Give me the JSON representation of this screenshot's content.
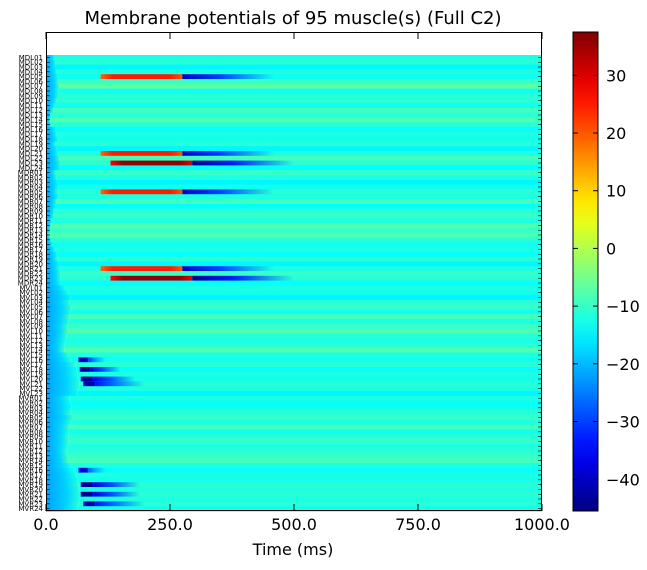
{
  "chart_data": {
    "type": "heatmap",
    "title": "Membrane potentials of 95 muscle(s) (Full C2)",
    "xlabel": "Time (ms)",
    "ylabel": "",
    "xlim": [
      0,
      1000
    ],
    "x_ticks": [
      "0.0",
      "250.0",
      "500.0",
      "750.0",
      "1000.0"
    ],
    "colorbar": {
      "colormap": "jet",
      "range": [
        -45.5,
        37.5
      ],
      "ticks": [
        "30",
        "20",
        "10",
        "0",
        "−10",
        "−20",
        "−30",
        "−40"
      ],
      "tick_values": [
        30,
        20,
        10,
        0,
        -10,
        -20,
        -30,
        -40
      ]
    },
    "rows": [
      "MDL01",
      "MDL02",
      "MDL03",
      "MDL04",
      "MDL05",
      "MDL06",
      "MDL07",
      "MDL08",
      "MDL09",
      "MDL10",
      "MDL11",
      "MDL12",
      "MDL13",
      "MDL14",
      "MDL15",
      "MDL16",
      "MDL17",
      "MDL18",
      "MDL19",
      "MDL20",
      "MDL21",
      "MDL22",
      "MDL23",
      "MDL24",
      "MDR01",
      "MDR02",
      "MDR03",
      "MDR04",
      "MDR05",
      "MDR06",
      "MDR07",
      "MDR08",
      "MDR09",
      "MDR10",
      "MDR11",
      "MDR12",
      "MDR13",
      "MDR14",
      "MDR15",
      "MDR16",
      "MDR17",
      "MDR18",
      "MDR19",
      "MDR20",
      "MDR21",
      "MDR22",
      "MDR23",
      "MDR24",
      "MVL01",
      "MVL02",
      "MVL03",
      "MVL04",
      "MVL05",
      "MVL06",
      "MVL07",
      "MVL08",
      "MVL09",
      "MVL10",
      "MVL11",
      "MVL12",
      "MVL13",
      "MVL14",
      "MVL15",
      "MVL16",
      "MVL17",
      "MVL18",
      "MVL19",
      "MVL20",
      "MVL21",
      "MVL22",
      "MVL23",
      "MVR01",
      "MVR02",
      "MVR03",
      "MVR04",
      "MVR05",
      "MVR06",
      "MVR07",
      "MVR08",
      "MVR09",
      "MVR10",
      "MVR11",
      "MVR12",
      "MVR13",
      "MVR14",
      "MVR15",
      "MVR16",
      "MVR17",
      "MVR18",
      "MVR19",
      "MVR20",
      "MVR21",
      "MVR22",
      "MVR23",
      "MVR24"
    ],
    "baseline_values": [
      -12,
      -11,
      -15,
      -12,
      -13,
      -10,
      -7,
      -13,
      -11,
      -11,
      -13,
      -9,
      -11,
      -8,
      -11,
      -14,
      -12,
      -13,
      -11,
      -15,
      -12,
      -9,
      -11,
      -14,
      -10,
      -12,
      -15,
      -13,
      -11,
      -12,
      -9,
      -14,
      -11,
      -10,
      -12,
      -8,
      -10,
      -8,
      -11,
      -13,
      -12,
      -14,
      -11,
      -15,
      -12,
      -10,
      -11,
      -14,
      -12,
      -13,
      -15,
      -11,
      -10,
      -13,
      -9,
      -12,
      -10,
      -8,
      -11,
      -12,
      -11,
      -8,
      -12,
      -13,
      -11,
      -14,
      -12,
      -13,
      -11,
      -12,
      -15,
      -12,
      -14,
      -13,
      -11,
      -10,
      -12,
      -9,
      -13,
      -11,
      -10,
      -12,
      -11,
      -10,
      -9,
      -12,
      -14,
      -12,
      -13,
      -11,
      -12,
      -11,
      -12,
      -11,
      -13
    ],
    "onset_time_ms": [
      18,
      20,
      20,
      22,
      25,
      26,
      28,
      25,
      26,
      22,
      18,
      15,
      10,
      8,
      10,
      20,
      22,
      25,
      20,
      22,
      25,
      28,
      30,
      30,
      20,
      22,
      24,
      25,
      24,
      26,
      22,
      20,
      18,
      16,
      12,
      10,
      8,
      6,
      10,
      14,
      18,
      22,
      24,
      26,
      28,
      30,
      30,
      30,
      40,
      45,
      50,
      48,
      52,
      50,
      48,
      46,
      44,
      45,
      42,
      40,
      38,
      38,
      45,
      50,
      60,
      62,
      64,
      66,
      68,
      66,
      64,
      48,
      50,
      52,
      50,
      55,
      50,
      48,
      46,
      45,
      46,
      44,
      42,
      44,
      46,
      50,
      55,
      62,
      64,
      66,
      68,
      70,
      68,
      66,
      64
    ],
    "events": [
      {
        "row": "MDL05",
        "start_ms": 110,
        "end_ms": 275,
        "peak": 25,
        "after_end_ms": 460,
        "after_min": -40
      },
      {
        "row": "MDL21",
        "start_ms": 110,
        "end_ms": 275,
        "peak": 25,
        "after_end_ms": 460,
        "after_min": -40
      },
      {
        "row": "MDL23",
        "start_ms": 130,
        "end_ms": 295,
        "peak": 36,
        "after_end_ms": 500,
        "after_min": -44
      },
      {
        "row": "MDR05",
        "start_ms": 110,
        "end_ms": 275,
        "peak": 25,
        "after_end_ms": 460,
        "after_min": -40
      },
      {
        "row": "MDR21",
        "start_ms": 110,
        "end_ms": 275,
        "peak": 25,
        "after_end_ms": 460,
        "after_min": -40
      },
      {
        "row": "MDR23",
        "start_ms": 130,
        "end_ms": 295,
        "peak": 36,
        "after_end_ms": 500,
        "after_min": -44
      },
      {
        "row": "MVL16",
        "start_ms": 65,
        "end_ms": 85,
        "peak": -40,
        "after_end_ms": 120,
        "after_min": -30
      },
      {
        "row": "MVL18",
        "start_ms": 68,
        "end_ms": 90,
        "peak": -44,
        "after_end_ms": 150,
        "after_min": -38
      },
      {
        "row": "MVL20",
        "start_ms": 70,
        "end_ms": 95,
        "peak": -44,
        "after_end_ms": 180,
        "after_min": -38
      },
      {
        "row": "MVL21",
        "start_ms": 75,
        "end_ms": 100,
        "peak": -42,
        "after_end_ms": 200,
        "after_min": -34
      },
      {
        "row": "MVR16",
        "start_ms": 65,
        "end_ms": 85,
        "peak": -38,
        "after_end_ms": 120,
        "after_min": -28
      },
      {
        "row": "MVR19",
        "start_ms": 70,
        "end_ms": 95,
        "peak": -44,
        "after_end_ms": 190,
        "after_min": -38
      },
      {
        "row": "MVR21",
        "start_ms": 70,
        "end_ms": 95,
        "peak": -44,
        "after_end_ms": 190,
        "after_min": -38
      },
      {
        "row": "MVR23",
        "start_ms": 75,
        "end_ms": 100,
        "peak": -42,
        "after_end_ms": 200,
        "after_min": -34
      }
    ],
    "grid": false,
    "legend": "colorbar-right"
  }
}
